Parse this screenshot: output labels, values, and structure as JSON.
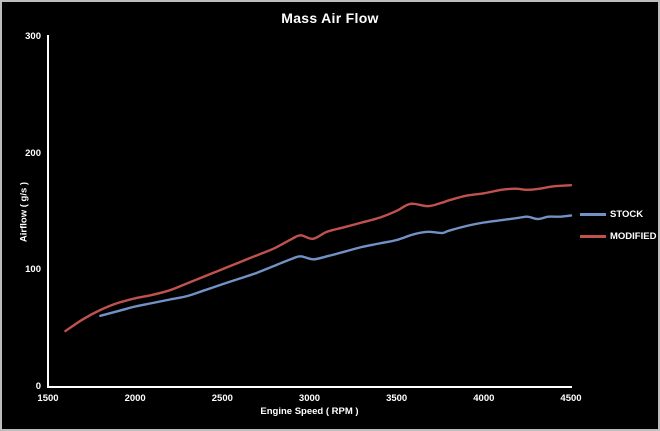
{
  "colors": {
    "background": "#000000",
    "frame_border": "#bdbdbd",
    "axis": "#ffffff",
    "text": "#ffffff",
    "stock_line": "#7291c5",
    "modified_line": "#c0524e"
  },
  "chart_data": {
    "type": "line",
    "title": "Mass Air Flow",
    "xlabel": "Engine Speed ( RPM )",
    "ylabel": "Airflow ( g/s )",
    "xlim": [
      1500,
      4500
    ],
    "ylim": [
      0,
      300
    ],
    "x_ticks": [
      1500,
      2000,
      2500,
      3000,
      3500,
      4000,
      4500
    ],
    "y_ticks": [
      0,
      100,
      200,
      300
    ],
    "grid": false,
    "legend_position": "right",
    "series": [
      {
        "name": "STOCK",
        "color": "#7291c5",
        "points": [
          [
            1800,
            61
          ],
          [
            1900,
            65
          ],
          [
            2000,
            69
          ],
          [
            2100,
            72
          ],
          [
            2200,
            75
          ],
          [
            2300,
            78
          ],
          [
            2400,
            83
          ],
          [
            2500,
            88
          ],
          [
            2600,
            93
          ],
          [
            2700,
            98
          ],
          [
            2800,
            104
          ],
          [
            2900,
            110
          ],
          [
            2950,
            112
          ],
          [
            3020,
            109.5
          ],
          [
            3100,
            112
          ],
          [
            3200,
            116
          ],
          [
            3300,
            120
          ],
          [
            3400,
            123
          ],
          [
            3500,
            126
          ],
          [
            3600,
            131
          ],
          [
            3680,
            133
          ],
          [
            3760,
            132
          ],
          [
            3800,
            134
          ],
          [
            3900,
            138
          ],
          [
            4000,
            141
          ],
          [
            4100,
            143
          ],
          [
            4200,
            145
          ],
          [
            4250,
            146
          ],
          [
            4310,
            144
          ],
          [
            4370,
            146
          ],
          [
            4440,
            146
          ],
          [
            4500,
            147
          ]
        ]
      },
      {
        "name": "MODIFIED",
        "color": "#c0524e",
        "points": [
          [
            1600,
            48
          ],
          [
            1700,
            58
          ],
          [
            1800,
            66
          ],
          [
            1900,
            72
          ],
          [
            2000,
            76
          ],
          [
            2100,
            79
          ],
          [
            2200,
            83
          ],
          [
            2300,
            89
          ],
          [
            2400,
            95
          ],
          [
            2500,
            101
          ],
          [
            2600,
            107
          ],
          [
            2700,
            113
          ],
          [
            2800,
            119
          ],
          [
            2900,
            127
          ],
          [
            2950,
            130
          ],
          [
            3020,
            127
          ],
          [
            3100,
            133
          ],
          [
            3200,
            137
          ],
          [
            3300,
            141
          ],
          [
            3400,
            145
          ],
          [
            3500,
            151
          ],
          [
            3580,
            157
          ],
          [
            3680,
            155
          ],
          [
            3760,
            158
          ],
          [
            3800,
            160
          ],
          [
            3900,
            164
          ],
          [
            4000,
            166
          ],
          [
            4100,
            169
          ],
          [
            4180,
            170
          ],
          [
            4250,
            169
          ],
          [
            4320,
            170
          ],
          [
            4400,
            172
          ],
          [
            4500,
            173
          ]
        ]
      }
    ]
  }
}
